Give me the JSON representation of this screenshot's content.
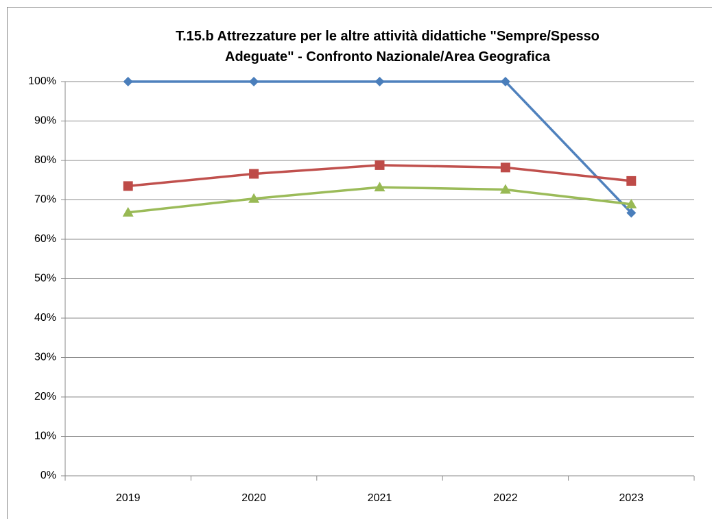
{
  "chart_data": {
    "type": "line",
    "title": "T.15.b Attrezzature per le altre attività didattiche \"Sempre/Spesso Adeguate\" - Confronto Nazionale/Area Geografica",
    "categories": [
      "2019",
      "2020",
      "2021",
      "2022",
      "2023"
    ],
    "series": [
      {
        "color": "#4f81bd",
        "marker": "diamond",
        "values": [
          100,
          100,
          100,
          100,
          66.7
        ]
      },
      {
        "color": "#c0504d",
        "marker": "square",
        "values": [
          73.5,
          76.6,
          78.8,
          78.2,
          74.8
        ]
      },
      {
        "color": "#9bbb59",
        "marker": "triangle",
        "values": [
          66.8,
          70.3,
          73.2,
          72.6,
          68.9
        ]
      }
    ],
    "ylim": [
      0,
      100
    ],
    "yticks": [
      {
        "value": 0,
        "label": "0%"
      },
      {
        "value": 10,
        "label": "10%"
      },
      {
        "value": 20,
        "label": "20%"
      },
      {
        "value": 30,
        "label": "30%"
      },
      {
        "value": 40,
        "label": "40%"
      },
      {
        "value": 50,
        "label": "50%"
      },
      {
        "value": 60,
        "label": "60%"
      },
      {
        "value": 70,
        "label": "70%"
      },
      {
        "value": 80,
        "label": "80%"
      },
      {
        "value": 90,
        "label": "90%"
      },
      {
        "value": 100,
        "label": "100%"
      }
    ],
    "grid": true
  }
}
